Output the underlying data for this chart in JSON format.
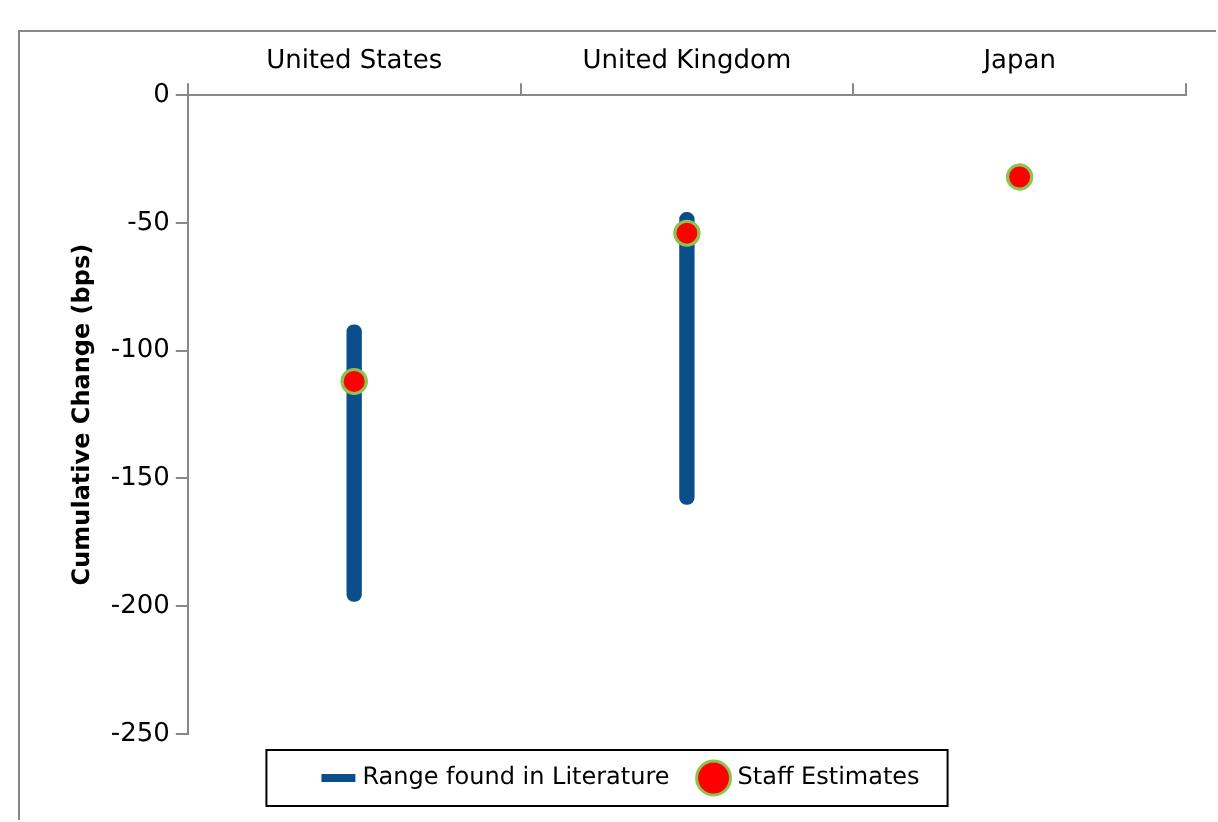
{
  "chart_data": {
    "type": "bar",
    "ylabel": "Cumulative Change (bps)",
    "categories": [
      "United States",
      "United Kingdom",
      "Japan"
    ],
    "series": [
      {
        "name": "Range found in Literature",
        "color": "#0b4f8a",
        "base": [
          -198,
          -160,
          null
        ],
        "values": [
          108,
          114,
          null
        ]
      },
      {
        "name": "Staff Estimates",
        "type": "scatter",
        "color": "#ff0000",
        "x": [
          "United States",
          "United Kingdom",
          "Japan"
        ],
        "values": [
          -112,
          -54,
          -32
        ]
      }
    ],
    "ylim": [
      -250,
      0
    ],
    "yticks": [
      -250,
      -200,
      -150,
      -100,
      -50,
      0
    ],
    "legend": "bottom",
    "marker": "circle"
  }
}
